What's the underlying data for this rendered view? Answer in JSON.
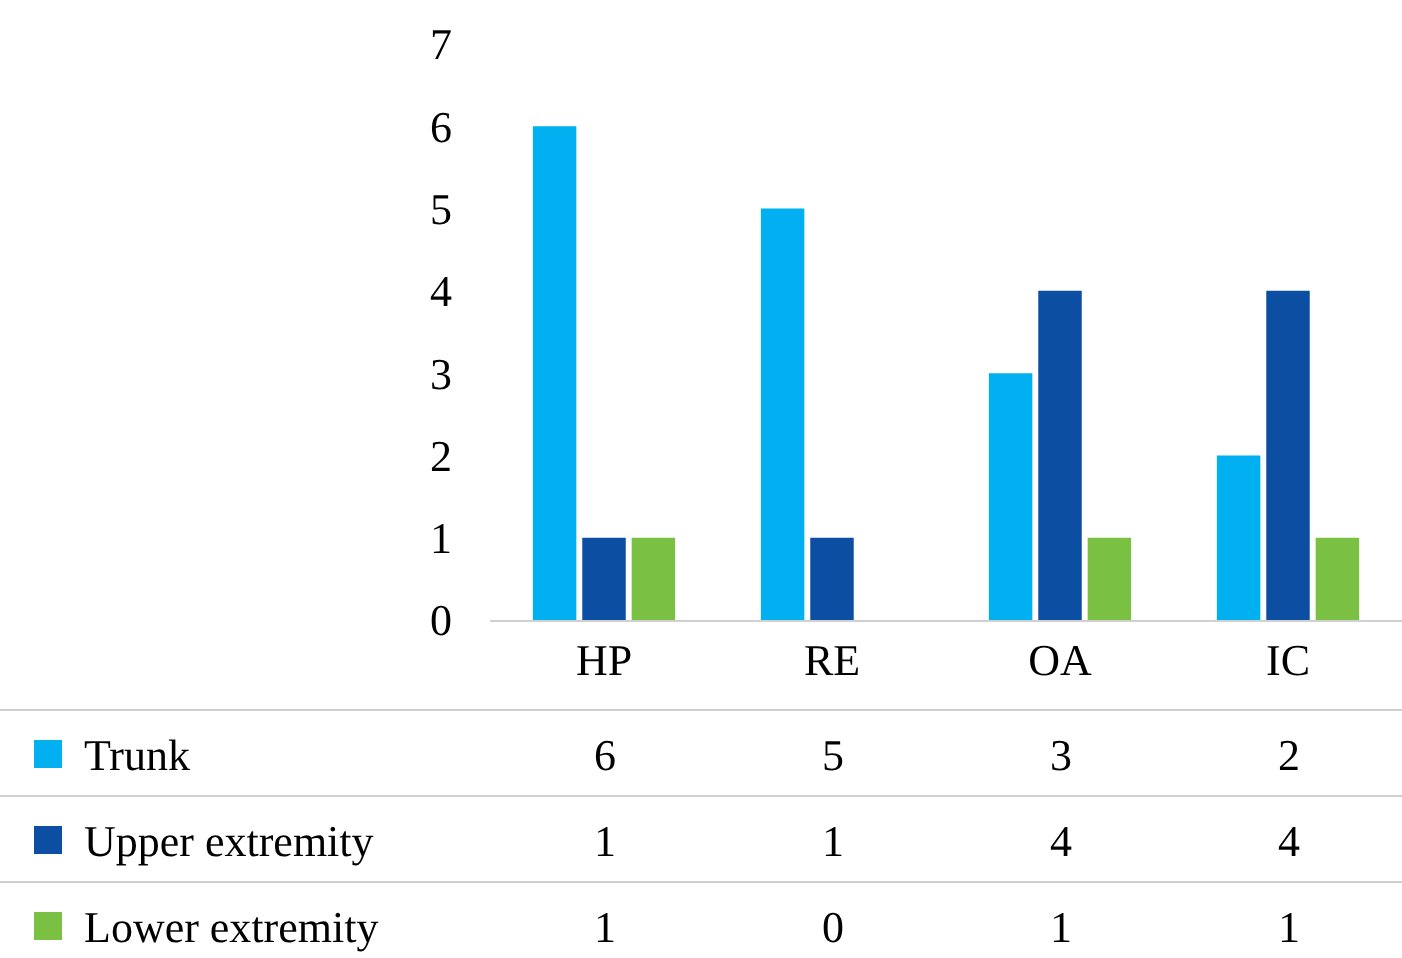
{
  "chart_data": {
    "type": "bar",
    "categories": [
      "HP",
      "RE",
      "OA",
      "IC"
    ],
    "series": [
      {
        "name": "Trunk",
        "color": "#00b0f0",
        "values": [
          6,
          5,
          3,
          2
        ]
      },
      {
        "name": "Upper extremity",
        "color": "#0c4ea2",
        "values": [
          1,
          1,
          4,
          4
        ]
      },
      {
        "name": "Lower extremity",
        "color": "#7ac143",
        "values": [
          1,
          0,
          1,
          1
        ]
      }
    ],
    "ylim": [
      0,
      7
    ],
    "yticks": [
      0,
      1,
      2,
      3,
      4,
      5,
      6,
      7
    ],
    "grid": false,
    "legend": "bottom",
    "data_labels": true
  }
}
